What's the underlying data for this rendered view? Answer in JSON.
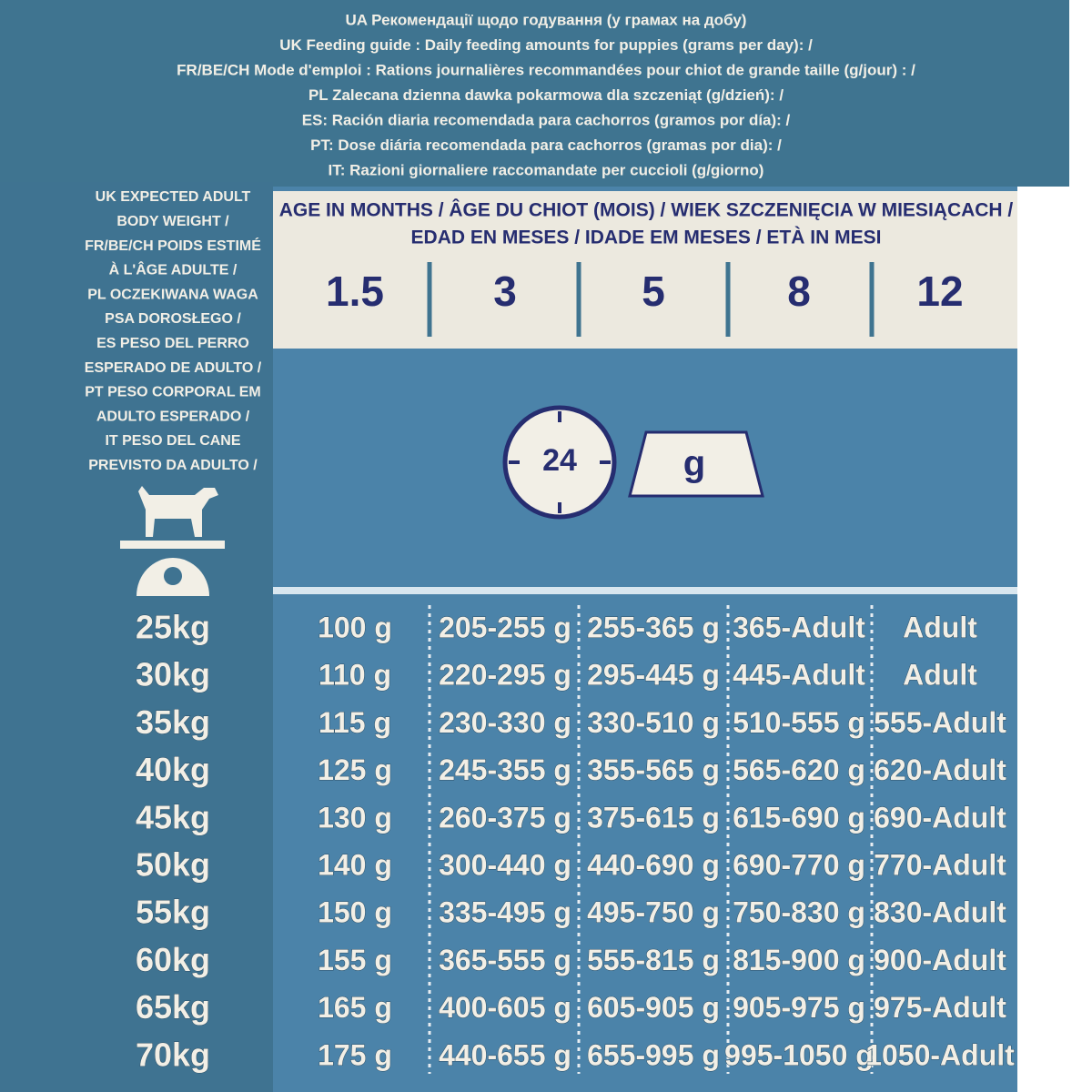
{
  "header": {
    "lines": [
      "UA Рекомендації щодо годування (у грамах на добу)",
      "UK Feeding guide : Daily feeding amounts for puppies (grams per day): /",
      "FR/BE/CH Mode d'emploi : Rations journalières recommandées pour chiot de grande taille (g/jour) : /",
      "PL Zalecana dzienna dawka pokarmowa dla szczeniąt (g/dzień): /",
      "ES: Ración diaria recomendada para cachorros (gramos por día): /",
      "PT: Dose diária recomendada para cachorros (gramas por dia): /",
      "IT: Razioni giornaliere raccomandate per cuccioli (g/giorno)"
    ]
  },
  "weight_label": {
    "lines": [
      "UK EXPECTED ADULT",
      "BODY WEIGHT /",
      "FR/BE/CH POIDS ESTIMÉ",
      "À L'ÂGE ADULTE /",
      "PL OCZEKIWANA WAGA",
      "PSA DOROSŁEGO /",
      "ES PESO DEL PERRO",
      "ESPERADO DE ADULTO /",
      "PT PESO CORPORAL EM",
      "ADULTO ESPERADO /",
      "IT PESO DEL CANE",
      "PREVISTO DA ADULTO /"
    ]
  },
  "age_header": {
    "lines": [
      "AGE IN MONTHS / ÂGE DU CHIOT (MOIS) / WIEK SZCZENIĘCIA W MIESIĄCACH /",
      "EDAD EN MESES / IDADE EM MESES / ETÀ IN MESI"
    ],
    "ages": [
      "1.5",
      "3",
      "5",
      "8",
      "12"
    ]
  },
  "icons": {
    "clock": "24",
    "bowl": "g"
  },
  "table": {
    "rows": [
      {
        "weight": "25kg",
        "cells": [
          "100 g",
          "205-255 g",
          "255-365 g",
          "365-Adult",
          "Adult"
        ]
      },
      {
        "weight": "30kg",
        "cells": [
          "110 g",
          "220-295 g",
          "295-445 g",
          "445-Adult",
          "Adult"
        ]
      },
      {
        "weight": "35kg",
        "cells": [
          "115 g",
          "230-330 g",
          "330-510 g",
          "510-555 g",
          "555-Adult"
        ]
      },
      {
        "weight": "40kg",
        "cells": [
          "125 g",
          "245-355 g",
          "355-565 g",
          "565-620 g",
          "620-Adult"
        ]
      },
      {
        "weight": "45kg",
        "cells": [
          "130 g",
          "260-375 g",
          "375-615 g",
          "615-690 g",
          "690-Adult"
        ]
      },
      {
        "weight": "50kg",
        "cells": [
          "140 g",
          "300-440 g",
          "440-690 g",
          "690-770 g",
          "770-Adult"
        ]
      },
      {
        "weight": "55kg",
        "cells": [
          "150 g",
          "335-495 g",
          "495-750 g",
          "750-830 g",
          "830-Adult"
        ]
      },
      {
        "weight": "60kg",
        "cells": [
          "155 g",
          "365-555 g",
          "555-815 g",
          "815-900 g",
          "900-Adult"
        ]
      },
      {
        "weight": "65kg",
        "cells": [
          "165 g",
          "400-605 g",
          "605-905 g",
          "905-975 g",
          "975-Adult"
        ]
      },
      {
        "weight": "70kg",
        "cells": [
          "175 g",
          "440-655 g",
          "655-995 g",
          "995-1050 g",
          "1050-Adult"
        ]
      }
    ]
  }
}
